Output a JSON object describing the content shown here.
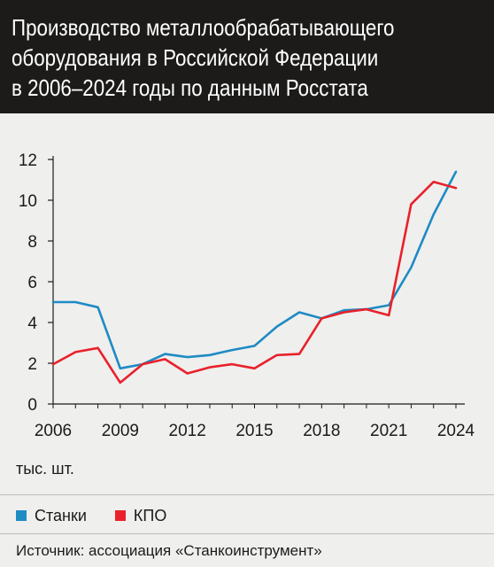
{
  "title_lines": [
    "Производство металлообрабатывающего",
    "оборудования в Российской Федерации",
    "в 2006–2024 годы по данным Росстата"
  ],
  "unit": "тыс. шт.",
  "source": "Источник: ассоциация «Станкоинструмент»",
  "chart_data": {
    "type": "line",
    "x": [
      2006,
      2007,
      2008,
      2009,
      2010,
      2011,
      2012,
      2013,
      2014,
      2015,
      2016,
      2017,
      2018,
      2019,
      2020,
      2021,
      2022,
      2023,
      2024
    ],
    "xticks": [
      2006,
      2009,
      2012,
      2015,
      2018,
      2021,
      2024
    ],
    "yticks": [
      0,
      2,
      4,
      6,
      8,
      10,
      12
    ],
    "xlim": [
      2006,
      2024
    ],
    "ylim": [
      0,
      12
    ],
    "series": [
      {
        "name": "Станки",
        "color": "#1e8bc3",
        "values": [
          5.0,
          5.0,
          4.75,
          1.75,
          1.95,
          2.45,
          2.3,
          2.4,
          2.65,
          2.85,
          3.8,
          4.5,
          4.2,
          4.6,
          4.65,
          4.85,
          6.7,
          9.3,
          11.4
        ]
      },
      {
        "name": "КПО",
        "color": "#e8212b",
        "values": [
          1.95,
          2.55,
          2.75,
          1.05,
          1.95,
          2.2,
          1.5,
          1.8,
          1.95,
          1.75,
          2.4,
          2.45,
          4.2,
          4.5,
          4.65,
          4.35,
          9.8,
          10.9,
          10.6
        ]
      }
    ],
    "grid": false,
    "legend": "bottom-left"
  }
}
